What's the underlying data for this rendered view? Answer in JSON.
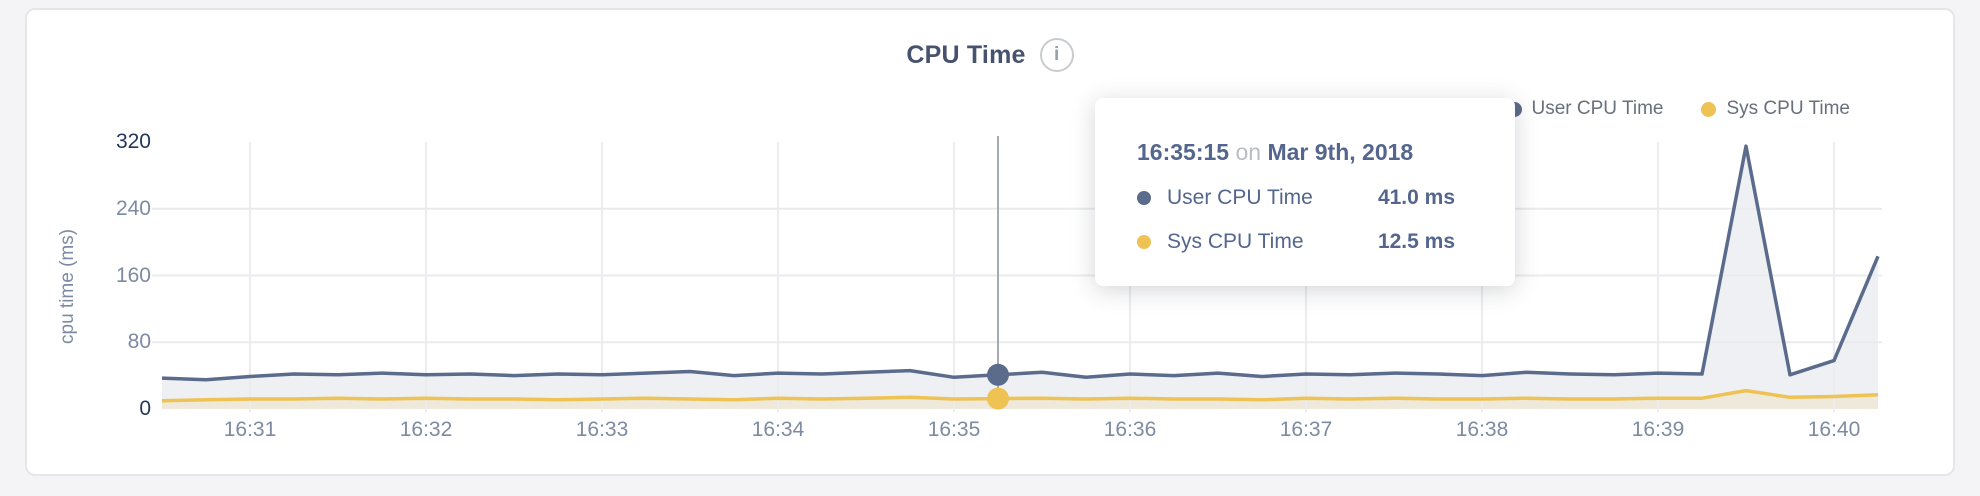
{
  "header": {
    "title": "CPU Time",
    "info_glyph": "i"
  },
  "legend": [
    {
      "label": "User CPU Time",
      "color": "#5b6b8c"
    },
    {
      "label": "Sys CPU Time",
      "color": "#eec253"
    }
  ],
  "tooltip": {
    "time": "16:35:15",
    "connector": "on",
    "date": "Mar 9th, 2018",
    "rows": [
      {
        "label": "User CPU Time",
        "value": "41.0 ms",
        "color": "#5b6b8c"
      },
      {
        "label": "Sys CPU Time",
        "value": "12.5 ms",
        "color": "#eec253"
      }
    ]
  },
  "chart_data": {
    "type": "area",
    "title": "CPU Time",
    "xlabel": "",
    "ylabel": "cpu time (ms)",
    "ylim": [
      0,
      320
    ],
    "y_ticks": [
      0,
      80,
      160,
      240,
      320
    ],
    "x_ticks": [
      "16:31",
      "16:32",
      "16:33",
      "16:34",
      "16:35",
      "16:36",
      "16:37",
      "16:38",
      "16:39",
      "16:40"
    ],
    "x_start": "16:30:30",
    "x_step_seconds": 15,
    "grid": true,
    "legend_position": "top-right",
    "series": [
      {
        "name": "User CPU Time",
        "color": "#5b6b8c",
        "fill": "rgba(92,108,138,0.10)",
        "values": [
          37,
          35,
          39,
          42,
          41,
          43,
          41,
          42,
          40,
          42,
          41,
          43,
          45,
          40,
          43,
          42,
          44,
          46,
          38,
          41,
          44,
          38,
          42,
          40,
          43,
          39,
          42,
          41,
          43,
          42,
          40,
          44,
          42,
          41,
          43,
          42,
          315,
          41,
          58,
          183
        ]
      },
      {
        "name": "Sys CPU Time",
        "color": "#eec253",
        "fill": "rgba(239,193,78,0.14)",
        "values": [
          10,
          11,
          12,
          12,
          13,
          12,
          13,
          12,
          12,
          11,
          12,
          13,
          12,
          11,
          13,
          12,
          13,
          14,
          12,
          12.5,
          13,
          12,
          13,
          12,
          12,
          11,
          13,
          12,
          13,
          12,
          12,
          13,
          12,
          12,
          13,
          13,
          22,
          14,
          15,
          17
        ]
      }
    ],
    "hover": {
      "index": 19,
      "time": "16:35:15",
      "date": "Mar 9th, 2018",
      "user_ms": 41.0,
      "sys_ms": 12.5,
      "crosshair_color": "#a6abb0"
    }
  }
}
